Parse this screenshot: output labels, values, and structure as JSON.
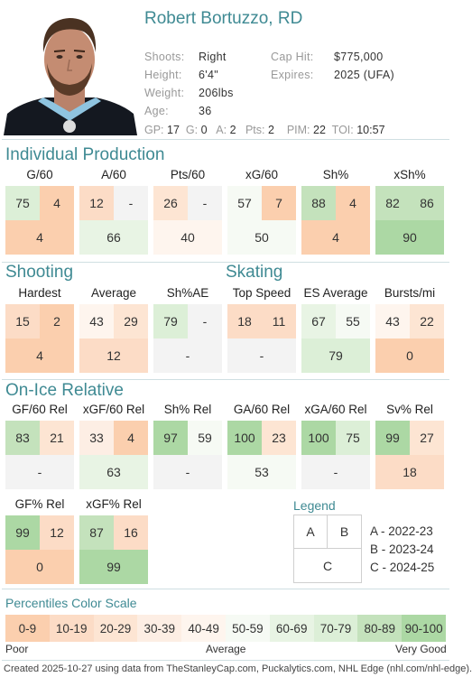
{
  "player": {
    "name": "Robert Bortuzzo, RD",
    "shoots_label": "Shoots:",
    "shoots": "Right",
    "height_label": "Height:",
    "height": "6'4\"",
    "weight_label": "Weight:",
    "weight": "206lbs",
    "age_label": "Age:",
    "age": "36",
    "cap_label": "Cap Hit:",
    "cap": "$775,000",
    "expires_label": "Expires:",
    "expires": "2025 (UFA)",
    "stats": [
      {
        "k": "GP:",
        "v": "17"
      },
      {
        "k": "G:",
        "v": "0"
      },
      {
        "k": "A:",
        "v": "2"
      },
      {
        "k": "Pts:",
        "v": "2"
      },
      {
        "k": "PIM:",
        "v": "22"
      },
      {
        "k": "TOI:",
        "v": "10:57"
      }
    ]
  },
  "colors": {
    "green_strong": "#acd8a4",
    "green_mid": "#c4e2bc",
    "green_light": "#dcefd7",
    "neutral": "#f3f3f3",
    "orange_light": "#fde5d3",
    "orange_mid": "#fcdcc6",
    "orange_strong": "#fbcfae",
    "accent": "#3f8a93"
  },
  "sections": {
    "individual_production": "Individual Production",
    "shooting": "Shooting",
    "skating": "Skating",
    "on_ice_relative": "On-Ice Relative"
  },
  "production": [
    {
      "label": "G/60",
      "a": "75",
      "b": "4",
      "c": "4"
    },
    {
      "label": "A/60",
      "a": "12",
      "b": "-",
      "c": "66"
    },
    {
      "label": "Pts/60",
      "a": "26",
      "b": "-",
      "c": "40"
    },
    {
      "label": "xG/60",
      "a": "57",
      "b": "7",
      "c": "50"
    },
    {
      "label": "Sh%",
      "a": "88",
      "b": "4",
      "c": "4"
    },
    {
      "label": "xSh%",
      "a": "82",
      "b": "86",
      "c": "90"
    }
  ],
  "shooting": [
    {
      "label": "Hardest",
      "a": "15",
      "b": "2",
      "c": "4"
    },
    {
      "label": "Average",
      "a": "43",
      "b": "29",
      "c": "12"
    },
    {
      "label": "Sh%AE",
      "a": "79",
      "b": "-",
      "c": "-"
    }
  ],
  "skating": [
    {
      "label": "Top Speed",
      "a": "18",
      "b": "11",
      "c": "-"
    },
    {
      "label": "ES Average",
      "a": "67",
      "b": "55",
      "c": "79"
    },
    {
      "label": "Bursts/mi",
      "a": "43",
      "b": "22",
      "c": "0"
    }
  ],
  "onice": [
    {
      "label": "GF/60 Rel",
      "a": "83",
      "b": "21",
      "c": "-"
    },
    {
      "label": "xGF/60 Rel",
      "a": "33",
      "b": "4",
      "c": "63"
    },
    {
      "label": "Sh% Rel",
      "a": "97",
      "b": "59",
      "c": "-"
    },
    {
      "label": "GA/60 Rel",
      "a": "100",
      "b": "23",
      "c": "53"
    },
    {
      "label": "xGA/60 Rel",
      "a": "100",
      "b": "75",
      "c": "-"
    },
    {
      "label": "Sv% Rel",
      "a": "99",
      "b": "27",
      "c": "18"
    },
    {
      "label": "GF% Rel",
      "a": "99",
      "b": "12",
      "c": "0"
    },
    {
      "label": "xGF% Rel",
      "a": "87",
      "b": "16",
      "c": "99"
    }
  ],
  "legend": {
    "title": "Legend",
    "a": "A",
    "b": "B",
    "c": "C",
    "items": [
      "A - 2022-23",
      "B - 2023-24",
      "C - 2024-25"
    ]
  },
  "scale": {
    "title": "Percentiles Color Scale",
    "ranges": [
      "0-9",
      "10-19",
      "20-29",
      "30-39",
      "40-49",
      "50-59",
      "60-69",
      "70-79",
      "80-89",
      "90-100"
    ],
    "colors": [
      "#fbcfae",
      "#fcdcc6",
      "#fde5d3",
      "#fdeee4",
      "#fef5ee",
      "#f6faf4",
      "#e8f4e4",
      "#dcefd7",
      "#c4e2bc",
      "#acd8a4"
    ],
    "poor": "Poor",
    "average": "Average",
    "very_good": "Very Good"
  },
  "footer": "Created 2025-10-27 using data from TheStanleyCap.com, Puckalytics.com, NHL Edge (nhl.com/nhl-edge)."
}
